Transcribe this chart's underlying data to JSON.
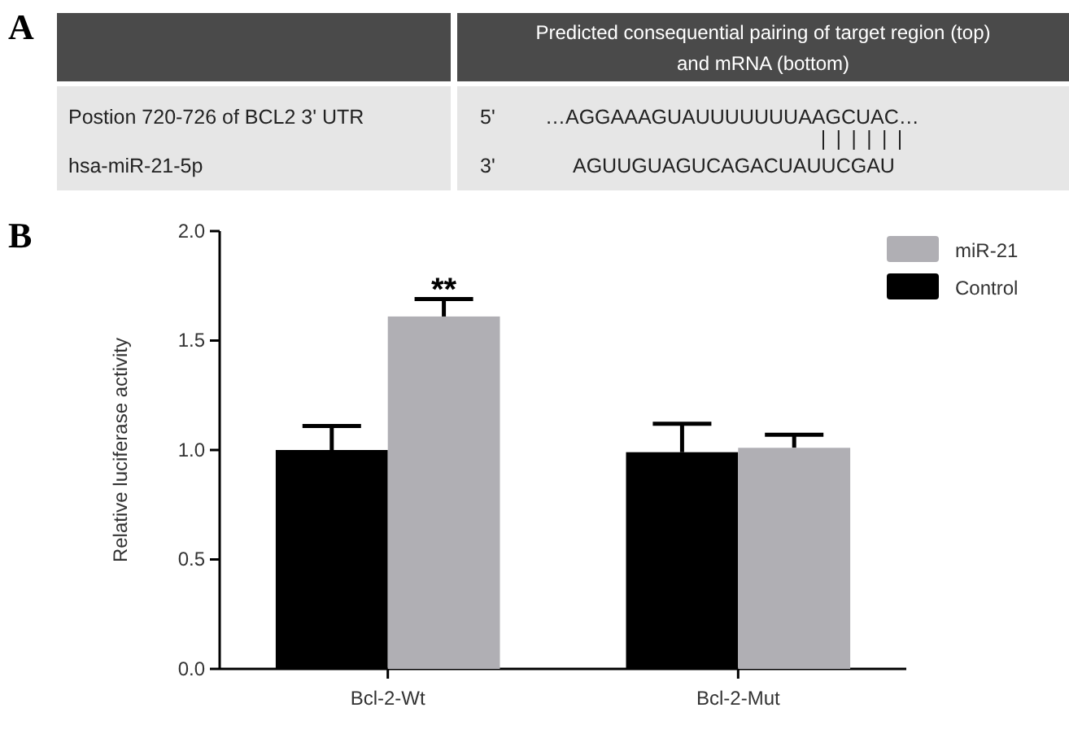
{
  "chart_data": [
    {
      "type": "other",
      "title": "A",
      "annotations": [
        "Predicted consequential pairing of target  region (top) and mRNA (bottom)",
        "Postion 720-726 of BCL2 3' UTR",
        "hsa-miR-21-5p",
        "5'",
        "…AGGAAAGUAUUUUUUUAAGCUAC…",
        "3'",
        "AGUUGUAGUCAGACUAUUCGAU"
      ]
    },
    {
      "type": "bar",
      "title": "B",
      "ylabel": "Relative luciferase activity",
      "categories": [
        "Bcl-2-Wt",
        "Bcl-2-Mut"
      ],
      "series": [
        {
          "name": "Control",
          "color": "#000000",
          "values": [
            1.0,
            0.99
          ],
          "errors": [
            0.11,
            0.13
          ]
        },
        {
          "name": "miR-21",
          "color": "#b0afb4",
          "values": [
            1.61,
            1.01
          ],
          "errors": [
            0.08,
            0.06
          ]
        }
      ],
      "ylim": [
        0,
        2
      ],
      "yticks": [
        {
          "value": 0,
          "label": "0.0"
        },
        {
          "value": 0.5,
          "label": "0.5"
        },
        {
          "value": 1,
          "label": "1.0"
        },
        {
          "value": 1.5,
          "label": "1.5"
        },
        {
          "value": 2,
          "label": "2.0"
        }
      ],
      "annotations": [
        "**"
      ],
      "grid": false,
      "legend": "top right"
    }
  ]
}
